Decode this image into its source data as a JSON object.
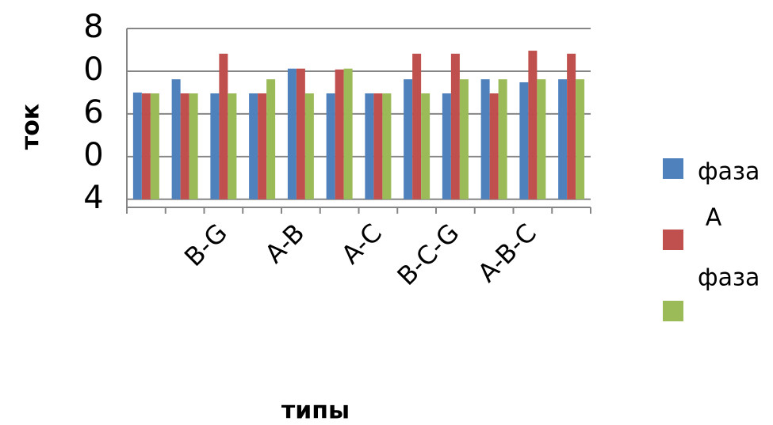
{
  "chart_data": {
    "type": "bar",
    "y_label": "ток",
    "x_label": "типы",
    "categories": [
      null,
      null,
      "B-G",
      null,
      "A-B",
      null,
      "A-C",
      null,
      "B-C-G",
      null,
      "A-B-C",
      null
    ],
    "series": [
      {
        "name": "фаза",
        "color": "#4f81bd",
        "values": [
          2.5,
          2.81,
          2.48,
          2.48,
          3.06,
          2.48,
          2.48,
          2.81,
          2.48,
          2.81,
          2.74,
          2.81
        ]
      },
      {
        "name": "A",
        "color": "#c0504d",
        "values": [
          2.48,
          2.48,
          3.41,
          2.48,
          3.06,
          3.04,
          2.48,
          3.41,
          3.41,
          2.48,
          3.48,
          3.41
        ]
      },
      {
        "name": "фаза",
        "color": "#9bbb59",
        "values": [
          2.48,
          2.48,
          2.48,
          2.81,
          2.48,
          3.06,
          2.48,
          2.48,
          2.81,
          2.81,
          2.81,
          2.81
        ]
      }
    ],
    "ylim": [
      -0.19,
      4
    ],
    "yticks": [
      {
        "value": 4,
        "label": "8"
      },
      {
        "value": 3,
        "label": "0"
      },
      {
        "value": 2,
        "label": "6"
      },
      {
        "value": 1,
        "label": "0"
      },
      {
        "value": 0,
        "label": "4"
      }
    ],
    "grid": true
  }
}
